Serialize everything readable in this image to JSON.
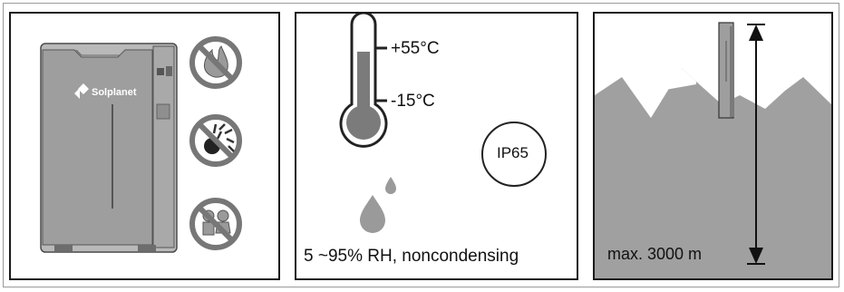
{
  "battery": {
    "brand": "Solplanet"
  },
  "environment": {
    "temp_max": "+55°C",
    "temp_min": "-15°C",
    "ip_rating": "IP65",
    "humidity": "5 ~95% RH, noncondensing"
  },
  "altitude": {
    "max": "max. 3000 m"
  },
  "icons": {
    "warning_1": "no-fire-icon",
    "warning_2": "no-explosives-icon",
    "warning_3": "no-children-icon"
  }
}
